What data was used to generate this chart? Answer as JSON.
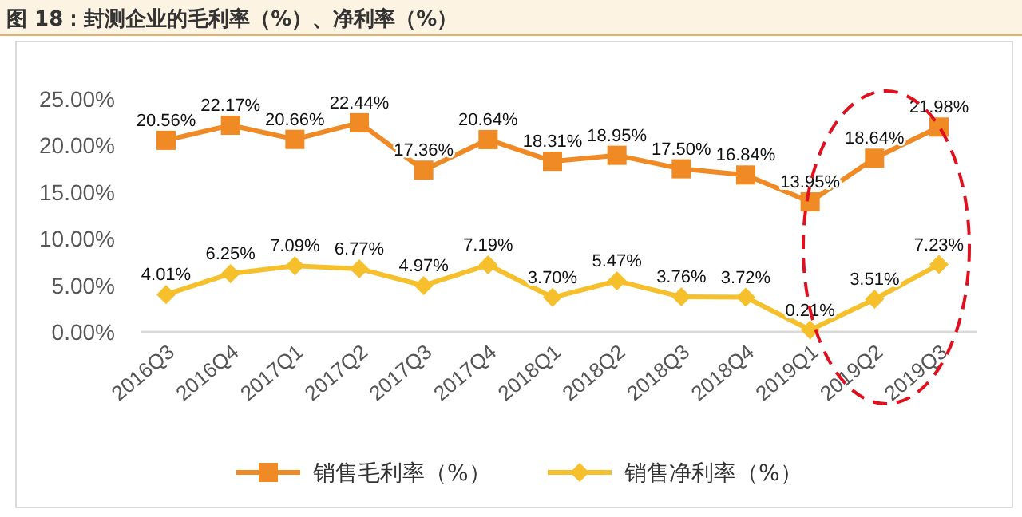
{
  "chart_data": {
    "type": "line",
    "title": "图 18：封测企业的毛利率（%）、净利率（%）",
    "categories": [
      "2016Q3",
      "2016Q4",
      "2017Q1",
      "2017Q2",
      "2017Q3",
      "2017Q4",
      "2018Q1",
      "2018Q2",
      "2018Q3",
      "2018Q4",
      "2019Q1",
      "2019Q2",
      "2019Q3"
    ],
    "series": [
      {
        "name": "销售毛利率（%）",
        "color": "#f08a24",
        "marker": "square",
        "values": [
          20.56,
          22.17,
          20.66,
          22.44,
          17.36,
          20.64,
          18.31,
          18.95,
          17.5,
          16.84,
          13.95,
          18.64,
          21.98
        ],
        "value_labels": [
          "20.56%",
          "22.17%",
          "20.66%",
          "22.44%",
          "17.36%",
          "20.64%",
          "18.31%",
          "18.95%",
          "17.50%",
          "16.84%",
          "13.95%",
          "18.64%",
          "21.98%"
        ]
      },
      {
        "name": "销售净利率（%）",
        "color": "#f5c02c",
        "marker": "diamond",
        "values": [
          4.01,
          6.25,
          7.09,
          6.77,
          4.97,
          7.19,
          3.7,
          5.47,
          3.76,
          3.72,
          0.21,
          3.51,
          7.23
        ],
        "value_labels": [
          "4.01%",
          "6.25%",
          "7.09%",
          "6.77%",
          "4.97%",
          "7.19%",
          "3.70%",
          "5.47%",
          "3.76%",
          "3.72%",
          "0.21%",
          "3.51%",
          "7.23%"
        ]
      }
    ],
    "ylim": [
      0,
      25
    ],
    "yticks": [
      {
        "value": 0,
        "label": "0.00%"
      },
      {
        "value": 5,
        "label": "5.00%"
      },
      {
        "value": 10,
        "label": "10.00%"
      },
      {
        "value": 15,
        "label": "15.00%"
      },
      {
        "value": 20,
        "label": "20.00%"
      },
      {
        "value": 25,
        "label": "25.00%"
      }
    ],
    "legend": "bottom"
  }
}
